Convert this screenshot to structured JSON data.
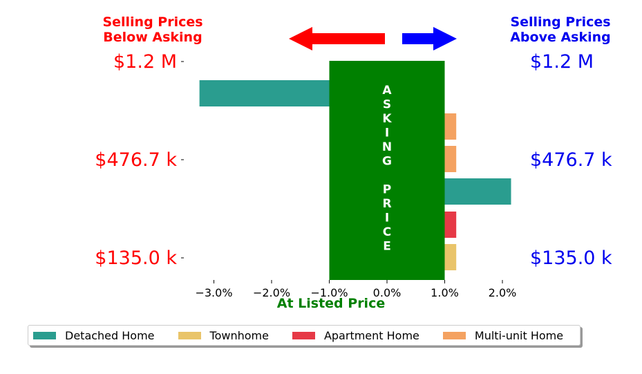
{
  "headers": {
    "left": [
      "Selling Prices",
      "Below Asking"
    ],
    "right": [
      "Selling Prices",
      "Above Asking"
    ]
  },
  "colors": {
    "left_text": "#ff0000",
    "right_text": "#0000ee",
    "asking_band": "#008000",
    "arrow_left": "#ff0000",
    "arrow_right": "#0000ff"
  },
  "chart_data": {
    "type": "bar",
    "orientation": "horizontal",
    "xlabel": "At Listed Price",
    "xlim": [
      -3.4,
      2.25
    ],
    "x_ticks": [
      -3.0,
      -2.0,
      -1.0,
      0.0,
      1.0,
      2.0
    ],
    "x_tick_labels": [
      "−3.0%",
      "−2.0%",
      "−1.0%",
      "0.0%",
      "1.0%",
      "2.0%"
    ],
    "band_label": "ASKING PRICE",
    "asking_band_range": [
      -1.0,
      1.0
    ],
    "y_tick_labels_left": [
      "$1.2 M",
      "$476.7 k",
      "$135.0 k"
    ],
    "y_tick_labels_right": [
      "$1.2 M",
      "$476.7 k",
      "$135.0 k"
    ],
    "series": [
      {
        "name": "Detached Home",
        "color": "#2a9d8f"
      },
      {
        "name": "Townhome",
        "color": "#e9c46a"
      },
      {
        "name": "Apartment Home",
        "color": "#e63946"
      },
      {
        "name": "Multi-unit Home",
        "color": "#f4a261"
      }
    ],
    "bars": [
      {
        "series": "Detached Home",
        "start": -1.0,
        "end": -3.25
      },
      {
        "series": "Multi-unit Home",
        "start": 1.0,
        "end": 1.2
      },
      {
        "series": "Multi-unit Home",
        "start": 1.0,
        "end": 1.2
      },
      {
        "series": "Detached Home",
        "start": 1.0,
        "end": 2.15
      },
      {
        "series": "Apartment Home",
        "start": 1.0,
        "end": 1.2
      },
      {
        "series": "Townhome",
        "start": 1.0,
        "end": 1.2
      }
    ],
    "legend_position": "bottom",
    "grid": false
  }
}
